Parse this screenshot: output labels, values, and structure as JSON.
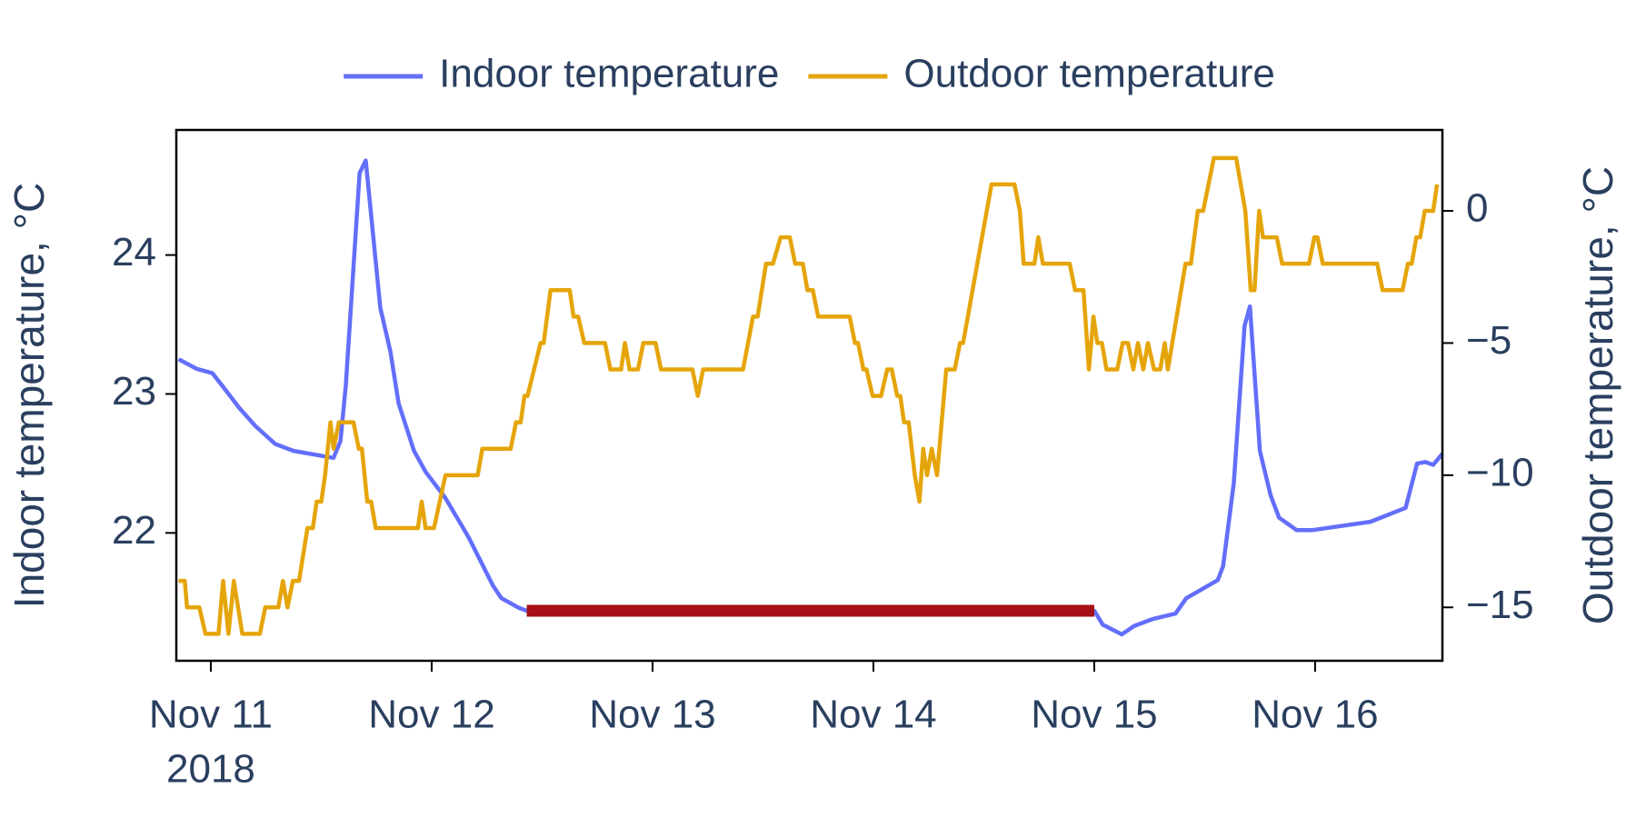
{
  "chart_data": {
    "type": "line",
    "y_label": "Indoor temperature, °C",
    "y2_label": "Outdoor temperature, °C",
    "legend": "top",
    "xlim": [
      "2018-11-10 20:15",
      "2018-11-16 13:50"
    ],
    "xticks": [
      {
        "value": "2018-11-11 00:00",
        "label": "Nov 11"
      },
      {
        "value": "2018-11-12 00:00",
        "label": "Nov 12"
      },
      {
        "value": "2018-11-13 00:00",
        "label": "Nov 13"
      },
      {
        "value": "2018-11-14 00:00",
        "label": "Nov 14"
      },
      {
        "value": "2018-11-15 00:00",
        "label": "Nov 15"
      },
      {
        "value": "2018-11-16 00:00",
        "label": "Nov 16"
      }
    ],
    "xtick_year": "2018",
    "ylim": [
      21.08,
      24.9
    ],
    "yticks": [
      22,
      23,
      24
    ],
    "y2lim": [
      -17.02,
      3.06
    ],
    "y2ticks": [
      {
        "value": -15,
        "label": "−15"
      },
      {
        "value": -10,
        "label": "−10"
      },
      {
        "value": -5,
        "label": "−5"
      },
      0
    ],
    "series": [
      {
        "name": "Indoor temperature",
        "color": "#636efa",
        "x": [
          "2018-11-10 20:30",
          "2018-11-10 22:30",
          "2018-11-11 00:10",
          "2018-11-11 01:35",
          "2018-11-11 03:05",
          "2018-11-11 04:50",
          "2018-11-11 07:00",
          "2018-11-11 09:00",
          "2018-11-11 13:20",
          "2018-11-11 14:05",
          "2018-11-11 14:40",
          "2018-11-11 16:10",
          "2018-11-11 16:50",
          "2018-11-11 18:25",
          "2018-11-11 19:30",
          "2018-11-11 20:25",
          "2018-11-11 22:05",
          "2018-11-11 23:20",
          "2018-11-12 01:30",
          "2018-11-12 04:00",
          "2018-11-12 06:40",
          "2018-11-12 07:35",
          "2018-11-12 09:30",
          "2018-11-12 10:20",
          "2018-11-15 00:00",
          "2018-11-15 00:55",
          "2018-11-15 03:00",
          "2018-11-15 04:20",
          "2018-11-15 06:20",
          "2018-11-15 08:50",
          "2018-11-15 10:00",
          "2018-11-15 13:25",
          "2018-11-15 14:00",
          "2018-11-15 15:10",
          "2018-11-15 16:20",
          "2018-11-15 16:55",
          "2018-11-15 18:00",
          "2018-11-15 19:10",
          "2018-11-15 20:05",
          "2018-11-15 22:00",
          "2018-11-15 23:40",
          "2018-11-16 06:00",
          "2018-11-16 09:50",
          "2018-11-16 11:05",
          "2018-11-16 12:00",
          "2018-11-16 12:50",
          "2018-11-16 13:50"
        ],
        "values": [
          23.25,
          23.18,
          23.15,
          23.03,
          22.9,
          22.77,
          22.64,
          22.59,
          22.54,
          22.66,
          23.06,
          24.59,
          24.68,
          23.62,
          23.31,
          22.93,
          22.59,
          22.44,
          22.25,
          21.97,
          21.62,
          21.53,
          21.46,
          21.44,
          21.44,
          21.34,
          21.27,
          21.33,
          21.38,
          21.42,
          21.53,
          21.66,
          21.76,
          22.36,
          23.49,
          23.63,
          22.59,
          22.27,
          22.11,
          22.02,
          22.02,
          22.08,
          22.18,
          22.5,
          22.51,
          22.49,
          22.57
        ]
      },
      {
        "name": "Outdoor temperature",
        "color": "#e5a50a",
        "axis": "y2",
        "x": [
          "2018-11-10 20:30",
          "2018-11-10 21:10",
          "2018-11-10 21:25",
          "2018-11-10 22:45",
          "2018-11-10 23:25",
          "2018-11-11 00:50",
          "2018-11-11 01:20",
          "2018-11-11 01:55",
          "2018-11-11 02:30",
          "2018-11-11 03:25",
          "2018-11-11 05:20",
          "2018-11-11 05:55",
          "2018-11-11 07:20",
          "2018-11-11 07:50",
          "2018-11-11 08:20",
          "2018-11-11 08:55",
          "2018-11-11 09:35",
          "2018-11-11 10:30",
          "2018-11-11 11:05",
          "2018-11-11 11:30",
          "2018-11-11 12:00",
          "2018-11-11 12:25",
          "2018-11-11 13:00",
          "2018-11-11 13:20",
          "2018-11-11 13:55",
          "2018-11-11 15:30",
          "2018-11-11 16:05",
          "2018-11-11 16:25",
          "2018-11-11 17:00",
          "2018-11-11 17:25",
          "2018-11-11 17:55",
          "2018-11-11 22:30",
          "2018-11-11 22:55",
          "2018-11-11 23:20",
          "2018-11-12 00:15",
          "2018-11-12 01:30",
          "2018-11-12 05:00",
          "2018-11-12 05:30",
          "2018-11-12 08:35",
          "2018-11-12 09:10",
          "2018-11-12 09:40",
          "2018-11-12 10:05",
          "2018-11-12 10:25",
          "2018-11-12 11:50",
          "2018-11-12 12:10",
          "2018-11-12 12:55",
          "2018-11-12 15:00",
          "2018-11-12 15:25",
          "2018-11-12 15:55",
          "2018-11-12 16:35",
          "2018-11-12 18:50",
          "2018-11-12 19:25",
          "2018-11-12 20:35",
          "2018-11-12 21:00",
          "2018-11-12 21:30",
          "2018-11-12 22:25",
          "2018-11-12 23:00",
          "2018-11-13 00:20",
          "2018-11-13 00:55",
          "2018-11-13 04:20",
          "2018-11-13 04:55",
          "2018-11-13 05:30",
          "2018-11-13 09:50",
          "2018-11-13 10:55",
          "2018-11-13 11:25",
          "2018-11-13 12:20",
          "2018-11-13 13:05",
          "2018-11-13 13:55",
          "2018-11-13 14:55",
          "2018-11-13 15:30",
          "2018-11-13 16:20",
          "2018-11-13 16:50",
          "2018-11-13 17:25",
          "2018-11-13 18:00",
          "2018-11-13 21:25",
          "2018-11-13 22:00",
          "2018-11-13 22:20",
          "2018-11-13 22:55",
          "2018-11-13 23:15",
          "2018-11-13 23:55",
          "2018-11-14 00:50",
          "2018-11-14 01:30",
          "2018-11-14 02:00",
          "2018-11-14 02:35",
          "2018-11-14 02:55",
          "2018-11-14 03:20",
          "2018-11-14 03:50",
          "2018-11-14 04:30",
          "2018-11-14 05:00",
          "2018-11-14 05:25",
          "2018-11-14 05:50",
          "2018-11-14 06:20",
          "2018-11-14 06:55",
          "2018-11-14 07:55",
          "2018-11-14 08:50",
          "2018-11-14 09:25",
          "2018-11-14 09:45",
          "2018-11-14 12:50",
          "2018-11-14 15:20",
          "2018-11-14 15:55",
          "2018-11-14 16:20",
          "2018-11-14 17:30",
          "2018-11-14 17:55",
          "2018-11-14 18:25",
          "2018-11-14 21:20",
          "2018-11-14 21:55",
          "2018-11-14 22:50",
          "2018-11-14 23:25",
          "2018-11-14 23:55",
          "2018-11-15 00:20",
          "2018-11-15 00:50",
          "2018-11-15 01:20",
          "2018-11-15 02:30",
          "2018-11-15 03:05",
          "2018-11-15 03:40",
          "2018-11-15 04:15",
          "2018-11-15 04:45",
          "2018-11-15 05:20",
          "2018-11-15 05:50",
          "2018-11-15 06:30",
          "2018-11-15 07:10",
          "2018-11-15 07:40",
          "2018-11-15 08:00",
          "2018-11-15 09:55",
          "2018-11-15 10:30",
          "2018-11-15 11:15",
          "2018-11-15 11:50",
          "2018-11-15 13:00",
          "2018-11-15 15:25",
          "2018-11-15 16:25",
          "2018-11-15 17:00",
          "2018-11-15 17:25",
          "2018-11-15 17:55",
          "2018-11-15 18:20",
          "2018-11-15 19:50",
          "2018-11-15 20:25",
          "2018-11-15 23:20",
          "2018-11-15 23:55",
          "2018-11-16 00:15",
          "2018-11-16 00:50",
          "2018-11-16 06:45",
          "2018-11-16 07:20",
          "2018-11-16 09:30",
          "2018-11-16 10:05",
          "2018-11-16 10:30",
          "2018-11-16 11:00",
          "2018-11-16 11:25",
          "2018-11-16 11:55",
          "2018-11-16 12:50",
          "2018-11-16 13:15"
        ],
        "values": [
          -14,
          -14,
          -15,
          -15,
          -16,
          -16,
          -14,
          -16,
          -14,
          -16,
          -16,
          -15,
          -15,
          -14,
          -15,
          -14,
          -14,
          -12,
          -12,
          -11,
          -11,
          -10,
          -8,
          -9,
          -8,
          -8,
          -9,
          -9,
          -11,
          -11,
          -12,
          -12,
          -11,
          -12,
          -12,
          -10,
          -10,
          -9,
          -9,
          -8,
          -8,
          -7,
          -7,
          -5,
          -5,
          -3,
          -3,
          -4,
          -4,
          -5,
          -5,
          -6,
          -6,
          -5,
          -6,
          -6,
          -5,
          -5,
          -6,
          -6,
          -7,
          -6,
          -6,
          -4,
          -4,
          -2,
          -2,
          -1,
          -1,
          -2,
          -2,
          -3,
          -3,
          -4,
          -4,
          -5,
          -5,
          -6,
          -6,
          -7,
          -7,
          -6,
          -6,
          -7,
          -7,
          -8,
          -8,
          -10,
          -11,
          -9,
          -10,
          -9,
          -10,
          -6,
          -6,
          -5,
          -5,
          1,
          1,
          0,
          -2,
          -2,
          -1,
          -2,
          -2,
          -3,
          -3,
          -6,
          -4,
          -5,
          -5,
          -6,
          -6,
          -5,
          -5,
          -6,
          -5,
          -6,
          -5,
          -6,
          -6,
          -5,
          -6,
          -2,
          -2,
          0,
          0,
          2,
          2,
          0,
          -3,
          -3,
          0,
          -1,
          -1,
          -2,
          -2,
          -1,
          -1,
          -2,
          -2,
          -3,
          -3,
          -2,
          -2,
          -1,
          -1,
          0,
          0,
          1
        ]
      }
    ],
    "highlight": {
      "x": [
        "2018-11-12 10:20",
        "2018-11-15 00:00"
      ],
      "y": 21.44,
      "color": "#a50f15"
    }
  }
}
